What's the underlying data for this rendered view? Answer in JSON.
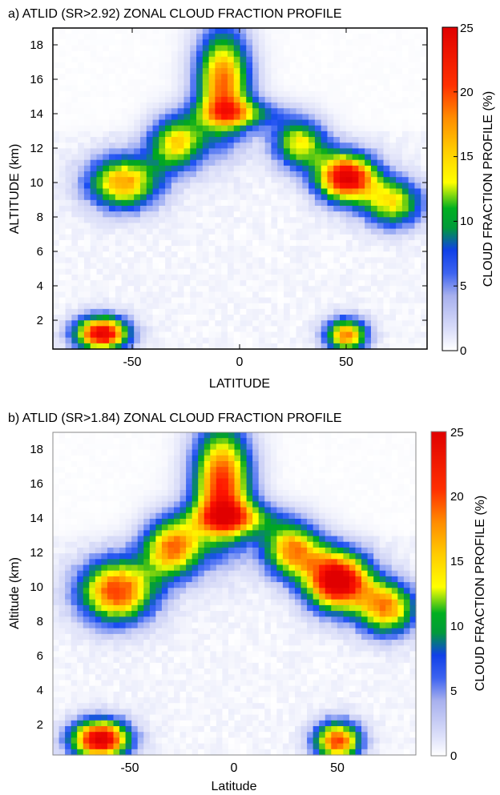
{
  "chart_data": [
    {
      "type": "heatmap",
      "title": "a) ATLID (SR>2.92) ZONAL CLOUD FRACTION PROFILE",
      "xlabel": "LATITUDE",
      "ylabel": "ALTITUDE (km)",
      "colorbar_label": "CLOUD FRACTION PROFILE (%)",
      "xlim": [
        -88,
        88
      ],
      "ylim": [
        0.3,
        19
      ],
      "xticks": [
        -50,
        0,
        50
      ],
      "yticks": [
        2,
        4,
        6,
        8,
        10,
        12,
        14,
        16,
        18
      ],
      "clim": [
        0,
        25
      ],
      "cticks": [
        0,
        5,
        10,
        15,
        20,
        25
      ],
      "colormap": [
        "#ffffff",
        "#c8cdf5",
        "#1a4df2",
        "#00a81e",
        "#ffff00",
        "#ff9400",
        "#ff1400",
        "#e00000"
      ],
      "grid": false,
      "features": [
        {
          "lat": 0,
          "alt": 14.0,
          "value": 10,
          "sigma_lat": 14,
          "sigma_alt": 0.6
        },
        {
          "lat": -8,
          "alt": 15.8,
          "value": 19,
          "sigma_lat": 9,
          "sigma_alt": 2.2
        },
        {
          "lat": -30,
          "alt": 12.3,
          "value": 15,
          "sigma_lat": 9,
          "sigma_alt": 1.1
        },
        {
          "lat": -55,
          "alt": 10.0,
          "value": 17,
          "sigma_lat": 12,
          "sigma_alt": 1.1
        },
        {
          "lat": 28,
          "alt": 12.3,
          "value": 14,
          "sigma_lat": 9,
          "sigma_alt": 1.0
        },
        {
          "lat": 50,
          "alt": 10.3,
          "value": 24,
          "sigma_lat": 10,
          "sigma_alt": 1.0
        },
        {
          "lat": 72,
          "alt": 8.8,
          "value": 14,
          "sigma_lat": 10,
          "sigma_alt": 1.0
        },
        {
          "lat": -65,
          "alt": 1.2,
          "value": 24,
          "sigma_lat": 9,
          "sigma_alt": 0.7
        },
        {
          "lat": 50,
          "alt": 1.1,
          "value": 18,
          "sigma_lat": 7,
          "sigma_alt": 0.7
        }
      ]
    },
    {
      "type": "heatmap",
      "title": "b) ATLID (SR>1.84) ZONAL CLOUD FRACTION PROFILE",
      "xlabel": "Latitude",
      "ylabel": "Altitude (km)",
      "colorbar_label": "CLOUD FRACTION PROFILE (%)",
      "xlim": [
        -88,
        88
      ],
      "ylim": [
        0.3,
        19
      ],
      "xticks": [
        -50,
        0,
        50
      ],
      "yticks": [
        2,
        4,
        6,
        8,
        10,
        12,
        14,
        16,
        18
      ],
      "clim": [
        0,
        25
      ],
      "cticks": [
        0,
        5,
        10,
        15,
        20,
        25
      ],
      "colormap": [
        "#ffffff",
        "#c8cdf5",
        "#1a4df2",
        "#00a81e",
        "#ffff00",
        "#ff9400",
        "#ff1400",
        "#e00000"
      ],
      "grid": false,
      "features": [
        {
          "lat": 0,
          "alt": 14.0,
          "value": 12,
          "sigma_lat": 15,
          "sigma_alt": 0.7
        },
        {
          "lat": -6,
          "alt": 16.0,
          "value": 21,
          "sigma_lat": 10,
          "sigma_alt": 2.4
        },
        {
          "lat": -30,
          "alt": 12.3,
          "value": 18,
          "sigma_lat": 10,
          "sigma_alt": 1.2
        },
        {
          "lat": -57,
          "alt": 9.8,
          "value": 20,
          "sigma_lat": 13,
          "sigma_alt": 1.3
        },
        {
          "lat": 28,
          "alt": 12.2,
          "value": 17,
          "sigma_lat": 10,
          "sigma_alt": 1.1
        },
        {
          "lat": 50,
          "alt": 10.4,
          "value": 26,
          "sigma_lat": 11,
          "sigma_alt": 1.2
        },
        {
          "lat": 74,
          "alt": 8.8,
          "value": 17,
          "sigma_lat": 10,
          "sigma_alt": 1.1
        },
        {
          "lat": -65,
          "alt": 1.2,
          "value": 25,
          "sigma_lat": 10,
          "sigma_alt": 0.8
        },
        {
          "lat": 50,
          "alt": 1.1,
          "value": 20,
          "sigma_lat": 8,
          "sigma_alt": 0.8
        }
      ]
    }
  ]
}
